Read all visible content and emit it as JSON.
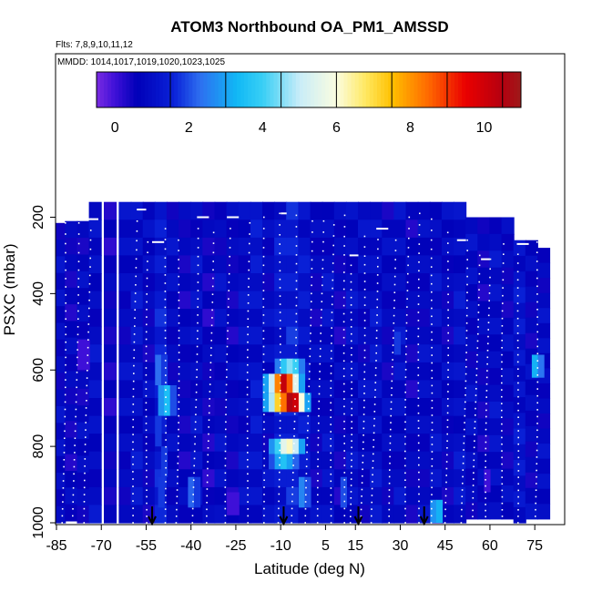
{
  "chart_data": {
    "type": "heatmap",
    "title": "ATOM3 Northbound OA_PM1_AMSSD",
    "subtitle_flights": "Flts: 7,8,9,10,11,12",
    "subtitle_dates": "MMDD: 1014,1017,1019,1020,1023,1025",
    "xlabel": "Latitude (deg N)",
    "ylabel": "PSXC (mbar)",
    "xlim": [
      -85,
      85
    ],
    "ylim": [
      1000,
      0
    ],
    "x_ticks": [
      -85,
      -70,
      -55,
      -40,
      -25,
      -10,
      5,
      15,
      30,
      45,
      60,
      75
    ],
    "x_tick_labels": [
      "-85",
      "-70",
      "-55",
      "-40",
      "-25",
      "-10",
      "5",
      "15",
      "30",
      "45",
      "60",
      "75"
    ],
    "y_ticks": [
      200,
      400,
      600,
      800,
      1000
    ],
    "y_tick_labels": [
      "200",
      "400",
      "600",
      "800",
      "1000"
    ],
    "colorbar": {
      "range": [
        -0.5,
        11
      ],
      "ticks": [
        0,
        2,
        4,
        6,
        8,
        10
      ],
      "tick_labels": [
        "0",
        "2",
        "4",
        "6",
        "8",
        "10"
      ],
      "divisions": [
        1.5,
        3.0,
        4.5,
        6.0,
        7.5,
        9.0,
        10.5
      ],
      "stops": [
        {
          "v": -0.5,
          "c": "#7a2be2"
        },
        {
          "v": 0.0,
          "c": "#3e10d8"
        },
        {
          "v": 0.6,
          "c": "#0000b8"
        },
        {
          "v": 1.6,
          "c": "#0a22d8"
        },
        {
          "v": 2.3,
          "c": "#2d6ef0"
        },
        {
          "v": 3.3,
          "c": "#11b8f5"
        },
        {
          "v": 4.0,
          "c": "#38cff5"
        },
        {
          "v": 5.0,
          "c": "#c8ecf8"
        },
        {
          "v": 6.0,
          "c": "#fbfde0"
        },
        {
          "v": 6.8,
          "c": "#ffe860"
        },
        {
          "v": 7.5,
          "c": "#ffc000"
        },
        {
          "v": 8.5,
          "c": "#ff6800"
        },
        {
          "v": 9.5,
          "c": "#ea0000"
        },
        {
          "v": 10.5,
          "c": "#b40010"
        },
        {
          "v": 11.0,
          "c": "#9e1a1a"
        }
      ]
    },
    "profiles": [
      {
        "lat": -84,
        "top": 215,
        "bottom": 1000,
        "value": 0.9
      },
      {
        "lat": -80,
        "top": 210,
        "bottom": 995,
        "value": 0.7
      },
      {
        "lat": -76,
        "top": 210,
        "bottom": 1000,
        "value": 0.8
      },
      {
        "lat": -72,
        "top": 160,
        "bottom": 1000,
        "value": 1.0
      },
      {
        "lat": -67,
        "top": 160,
        "bottom": 1000,
        "value": 0.6
      },
      {
        "lat": -62,
        "top": 160,
        "bottom": 1000,
        "value": 0.9
      },
      {
        "lat": -58,
        "top": 160,
        "bottom": 1000,
        "value": 1.1
      },
      {
        "lat": -54,
        "top": 160,
        "bottom": 1000,
        "value": 0.8
      },
      {
        "lat": -50,
        "top": 160,
        "bottom": 1000,
        "value": 1.4
      },
      {
        "lat": -46,
        "top": 160,
        "bottom": 1000,
        "value": 0.9
      },
      {
        "lat": -42,
        "top": 160,
        "bottom": 1000,
        "value": 0.7
      },
      {
        "lat": -38,
        "top": 160,
        "bottom": 1000,
        "value": 1.0
      },
      {
        "lat": -34,
        "top": 160,
        "bottom": 1000,
        "value": 0.6
      },
      {
        "lat": -30,
        "top": 160,
        "bottom": 1000,
        "value": 0.9
      },
      {
        "lat": -26,
        "top": 160,
        "bottom": 1000,
        "value": 0.7
      },
      {
        "lat": -22,
        "top": 160,
        "bottom": 1000,
        "value": 1.0
      },
      {
        "lat": -18,
        "top": 160,
        "bottom": 1000,
        "value": 1.2
      },
      {
        "lat": -14,
        "top": 160,
        "bottom": 1000,
        "value": 0.9
      },
      {
        "lat": -10,
        "top": 160,
        "bottom": 1000,
        "value": 1.3
      },
      {
        "lat": -6,
        "top": 160,
        "bottom": 1000,
        "value": 1.5
      },
      {
        "lat": -2,
        "top": 160,
        "bottom": 1000,
        "value": 1.2
      },
      {
        "lat": 2,
        "top": 160,
        "bottom": 1000,
        "value": 0.8
      },
      {
        "lat": 6,
        "top": 160,
        "bottom": 1000,
        "value": 1.0
      },
      {
        "lat": 10,
        "top": 160,
        "bottom": 1000,
        "value": 0.7
      },
      {
        "lat": 14,
        "top": 160,
        "bottom": 1000,
        "value": 1.0
      },
      {
        "lat": 18,
        "top": 160,
        "bottom": 1000,
        "value": 0.9
      },
      {
        "lat": 22,
        "top": 160,
        "bottom": 1000,
        "value": 1.1
      },
      {
        "lat": 26,
        "top": 160,
        "bottom": 1000,
        "value": 0.8
      },
      {
        "lat": 30,
        "top": 160,
        "bottom": 1000,
        "value": 1.0
      },
      {
        "lat": 34,
        "top": 160,
        "bottom": 1000,
        "value": 0.7
      },
      {
        "lat": 38,
        "top": 160,
        "bottom": 1000,
        "value": 0.9
      },
      {
        "lat": 42,
        "top": 160,
        "bottom": 1000,
        "value": 1.0
      },
      {
        "lat": 46,
        "top": 160,
        "bottom": 1000,
        "value": 0.8
      },
      {
        "lat": 50,
        "top": 160,
        "bottom": 1000,
        "value": 1.1
      },
      {
        "lat": 54,
        "top": 200,
        "bottom": 990,
        "value": 0.9
      },
      {
        "lat": 58,
        "top": 200,
        "bottom": 990,
        "value": 0.7
      },
      {
        "lat": 62,
        "top": 200,
        "bottom": 990,
        "value": 1.0
      },
      {
        "lat": 66,
        "top": 200,
        "bottom": 990,
        "value": 0.8
      },
      {
        "lat": 70,
        "top": 260,
        "bottom": 1000,
        "value": 1.2
      },
      {
        "lat": 74,
        "top": 260,
        "bottom": 990,
        "value": 0.8
      },
      {
        "lat": 78,
        "top": 280,
        "bottom": 990,
        "value": 0.9
      }
    ],
    "enhanced_cells": [
      {
        "lat0": -52,
        "lat1": -50,
        "p0": 560,
        "p1": 640,
        "value": 2.3
      },
      {
        "lat0": -50,
        "lat1": -48,
        "p0": 560,
        "p1": 640,
        "value": 1.8
      },
      {
        "lat0": -51,
        "lat1": -49,
        "p0": 640,
        "p1": 720,
        "value": 2.8
      },
      {
        "lat0": -49,
        "lat1": -47,
        "p0": 640,
        "p1": 720,
        "value": 3.5
      },
      {
        "lat0": -47,
        "lat1": -45,
        "p0": 640,
        "p1": 720,
        "value": 2.0
      },
      {
        "lat0": -52,
        "lat1": -50,
        "p0": 720,
        "p1": 800,
        "value": 1.8
      },
      {
        "lat0": -50,
        "lat1": -48,
        "p0": 800,
        "p1": 880,
        "value": 1.8
      },
      {
        "lat0": -51,
        "lat1": -49,
        "p0": 880,
        "p1": 960,
        "value": 1.8
      },
      {
        "lat0": -41,
        "lat1": -39,
        "p0": 880,
        "p1": 960,
        "value": 2.2
      },
      {
        "lat0": -39,
        "lat1": -37,
        "p0": 880,
        "p1": 960,
        "value": 1.8
      },
      {
        "lat0": -16,
        "lat1": -14,
        "p0": 610,
        "p1": 660,
        "value": 3.0
      },
      {
        "lat0": -14,
        "lat1": -12,
        "p0": 610,
        "p1": 660,
        "value": 5.0
      },
      {
        "lat0": -12,
        "lat1": -10,
        "p0": 610,
        "p1": 660,
        "value": 8.2
      },
      {
        "lat0": -10,
        "lat1": -8,
        "p0": 610,
        "p1": 660,
        "value": 10.2
      },
      {
        "lat0": -8,
        "lat1": -6,
        "p0": 610,
        "p1": 660,
        "value": 8.6
      },
      {
        "lat0": -6,
        "lat1": -4,
        "p0": 610,
        "p1": 660,
        "value": 5.5
      },
      {
        "lat0": -4,
        "lat1": -2,
        "p0": 610,
        "p1": 660,
        "value": 3.0
      },
      {
        "lat0": -16,
        "lat1": -14,
        "p0": 660,
        "p1": 710,
        "value": 3.0
      },
      {
        "lat0": -14,
        "lat1": -12,
        "p0": 660,
        "p1": 710,
        "value": 4.8
      },
      {
        "lat0": -12,
        "lat1": -10,
        "p0": 660,
        "p1": 710,
        "value": 7.2
      },
      {
        "lat0": -10,
        "lat1": -8,
        "p0": 660,
        "p1": 710,
        "value": 8.4
      },
      {
        "lat0": -8,
        "lat1": -6,
        "p0": 660,
        "p1": 710,
        "value": 10.6
      },
      {
        "lat0": -6,
        "lat1": -4,
        "p0": 660,
        "p1": 710,
        "value": 10.0
      },
      {
        "lat0": -4,
        "lat1": -2,
        "p0": 660,
        "p1": 710,
        "value": 6.0
      },
      {
        "lat0": -2,
        "lat1": 0,
        "p0": 660,
        "p1": 710,
        "value": 3.0
      },
      {
        "lat0": -12,
        "lat1": -10,
        "p0": 570,
        "p1": 610,
        "value": 2.5
      },
      {
        "lat0": -10,
        "lat1": -8,
        "p0": 570,
        "p1": 610,
        "value": 3.8
      },
      {
        "lat0": -8,
        "lat1": -6,
        "p0": 570,
        "p1": 610,
        "value": 4.5
      },
      {
        "lat0": -6,
        "lat1": -4,
        "p0": 570,
        "p1": 610,
        "value": 4.0
      },
      {
        "lat0": -4,
        "lat1": -2,
        "p0": 570,
        "p1": 610,
        "value": 2.5
      },
      {
        "lat0": -14,
        "lat1": -12,
        "p0": 780,
        "p1": 820,
        "value": 2.8
      },
      {
        "lat0": -12,
        "lat1": -10,
        "p0": 780,
        "p1": 820,
        "value": 4.0
      },
      {
        "lat0": -10,
        "lat1": -8,
        "p0": 780,
        "p1": 820,
        "value": 5.5
      },
      {
        "lat0": -8,
        "lat1": -6,
        "p0": 780,
        "p1": 820,
        "value": 6.2
      },
      {
        "lat0": -6,
        "lat1": -4,
        "p0": 780,
        "p1": 820,
        "value": 5.0
      },
      {
        "lat0": -4,
        "lat1": -2,
        "p0": 780,
        "p1": 820,
        "value": 3.0
      },
      {
        "lat0": -14,
        "lat1": -12,
        "p0": 820,
        "p1": 860,
        "value": 2.0
      },
      {
        "lat0": -12,
        "lat1": -10,
        "p0": 820,
        "p1": 860,
        "value": 3.0
      },
      {
        "lat0": -10,
        "lat1": -8,
        "p0": 820,
        "p1": 860,
        "value": 3.6
      },
      {
        "lat0": -8,
        "lat1": -6,
        "p0": 820,
        "p1": 860,
        "value": 3.0
      },
      {
        "lat0": -6,
        "lat1": -4,
        "p0": 820,
        "p1": 860,
        "value": 2.2
      },
      {
        "lat0": -4,
        "lat1": -2,
        "p0": 880,
        "p1": 960,
        "value": 2.6
      },
      {
        "lat0": -2,
        "lat1": 0,
        "p0": 880,
        "p1": 960,
        "value": 2.0
      },
      {
        "lat0": 10,
        "lat1": 12,
        "p0": 880,
        "p1": 960,
        "value": 2.0
      },
      {
        "lat0": 28,
        "lat1": 30,
        "p0": 500,
        "p1": 560,
        "value": 1.8
      },
      {
        "lat0": 40,
        "lat1": 42,
        "p0": 940,
        "p1": 1000,
        "value": 2.8
      },
      {
        "lat0": 42,
        "lat1": 44,
        "p0": 940,
        "p1": 1000,
        "value": 3.2
      },
      {
        "lat0": 58,
        "lat1": 60,
        "p0": 860,
        "p1": 920,
        "value": 0.0
      },
      {
        "lat0": 74,
        "lat1": 76,
        "p0": 560,
        "p1": 620,
        "value": 3.2
      },
      {
        "lat0": 76,
        "lat1": 78,
        "p0": 560,
        "p1": 620,
        "value": 2.4
      },
      {
        "lat0": -78,
        "lat1": -74,
        "p0": 520,
        "p1": 600,
        "value": 0.0
      },
      {
        "lat0": -28,
        "lat1": -24,
        "p0": 920,
        "p1": 980,
        "value": 0.0
      }
    ],
    "flight_tracks": [
      {
        "lat": -82,
        "top": 215
      },
      {
        "lat": -78,
        "top": 215
      },
      {
        "lat": -74,
        "top": 205
      },
      {
        "lat": -58,
        "top": 180
      },
      {
        "lat": -54,
        "top": 265
      },
      {
        "lat": -48,
        "top": 230
      },
      {
        "lat": -44,
        "top": 260
      },
      {
        "lat": -38,
        "top": 200
      },
      {
        "lat": -33,
        "top": 240
      },
      {
        "lat": -27,
        "top": 200
      },
      {
        "lat": -20,
        "top": 215
      },
      {
        "lat": -15,
        "top": 200
      },
      {
        "lat": -10,
        "top": 190
      },
      {
        "lat": -5,
        "top": 195
      },
      {
        "lat": 0,
        "top": 210
      },
      {
        "lat": 4,
        "top": 210
      },
      {
        "lat": 8,
        "top": 220
      },
      {
        "lat": 12,
        "top": 195
      },
      {
        "lat": 14,
        "top": 300
      },
      {
        "lat": 18,
        "top": 250
      },
      {
        "lat": 22,
        "top": 230
      },
      {
        "lat": 28,
        "top": 260
      },
      {
        "lat": 33,
        "top": 200
      },
      {
        "lat": 37,
        "top": 190
      },
      {
        "lat": 41,
        "top": 205
      },
      {
        "lat": 46,
        "top": 240
      },
      {
        "lat": 52,
        "top": 260
      },
      {
        "lat": 56,
        "top": 300
      },
      {
        "lat": 60,
        "top": 310
      },
      {
        "lat": 65,
        "top": 270
      },
      {
        "lat": 70,
        "top": 270
      },
      {
        "lat": 76,
        "top": 265
      }
    ],
    "flight_caps": [
      {
        "lat0": -77,
        "lat1": -71,
        "p": 205
      },
      {
        "lat0": -58,
        "lat1": -55,
        "p": 180
      },
      {
        "lat0": -53,
        "lat1": -49,
        "p": 265
      },
      {
        "lat0": -38,
        "lat1": -34,
        "p": 200
      },
      {
        "lat0": -28,
        "lat1": -24,
        "p": 200
      },
      {
        "lat0": -10,
        "lat1": -8,
        "p": 190
      },
      {
        "lat0": 13,
        "lat1": 16,
        "p": 300
      },
      {
        "lat0": 22,
        "lat1": 26,
        "p": 230
      },
      {
        "lat0": 49,
        "lat1": 52,
        "p": 260
      },
      {
        "lat0": 57,
        "lat1": 60,
        "p": 310
      },
      {
        "lat0": 69,
        "lat1": 73,
        "p": 270
      }
    ],
    "arrows": [
      {
        "lat": -53
      },
      {
        "lat": -9
      },
      {
        "lat": 16
      },
      {
        "lat": 38
      }
    ]
  }
}
